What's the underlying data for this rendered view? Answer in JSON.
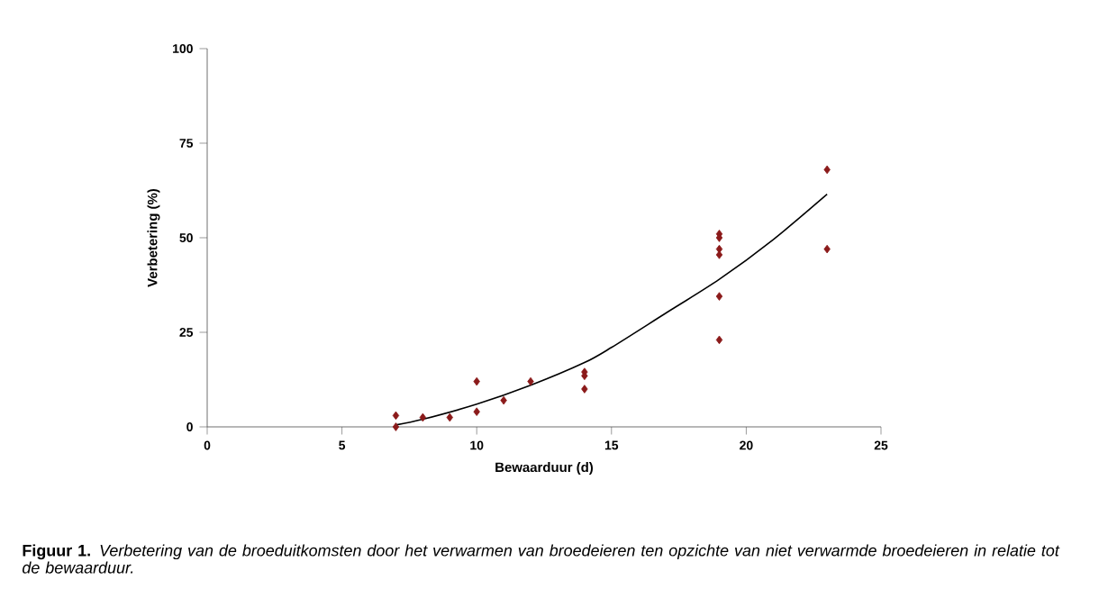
{
  "chart_data": {
    "type": "scatter",
    "xlabel": "Bewaarduur (d)",
    "ylabel": "Verbetering (%)",
    "xlim": [
      0,
      25
    ],
    "ylim": [
      0,
      100
    ],
    "xticks": [
      0,
      5,
      10,
      15,
      20,
      25
    ],
    "yticks": [
      0,
      25,
      50,
      75,
      100
    ],
    "x": [
      7,
      7,
      8,
      9,
      10,
      10,
      11,
      12,
      14,
      14,
      14,
      19,
      19,
      19,
      19,
      19,
      19,
      23,
      23
    ],
    "series": [
      {
        "color": "#8b1a1a",
        "marker": "diamond",
        "values": [
          3,
          0,
          2.5,
          2.5,
          12,
          4,
          7,
          12,
          14.5,
          13.5,
          10,
          51,
          50,
          47,
          45.5,
          34.5,
          23,
          68,
          47
        ]
      },
      {
        "type": "line",
        "marker": "none",
        "color": "#000000",
        "x": [
          7,
          8,
          10,
          12,
          14,
          15,
          17,
          19,
          21,
          23
        ],
        "values": [
          0.5,
          2,
          6,
          11,
          17,
          21,
          30,
          39,
          49.5,
          61.5
        ]
      }
    ],
    "annotations": [
      "**Figuur 1.** *Verbetering van de broeduitkomsten door het verwarmen van broedeieren ten opzichte van niet verwarmde broedeieren in relatie tot de bewaarduur.*"
    ]
  }
}
